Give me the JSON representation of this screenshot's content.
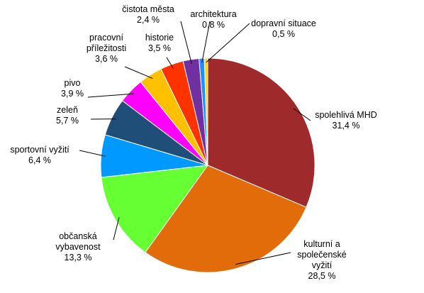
{
  "chart_data": {
    "type": "pie",
    "title": "",
    "legend": "none",
    "slices": [
      {
        "label": [
          "spolehlivá MHD"
        ],
        "value": 31.4,
        "value_text": "31,4 %",
        "color": "#9e2a2b"
      },
      {
        "label": [
          "kulturní a",
          "společenské",
          "vyžití"
        ],
        "value": 28.5,
        "value_text": "28,5 %",
        "color": "#e36c0a"
      },
      {
        "label": [
          "občanská",
          "vybavenost"
        ],
        "value": 13.3,
        "value_text": "13,3 %",
        "color": "#66ff33"
      },
      {
        "label": [
          "sportovní vyžití"
        ],
        "value": 6.4,
        "value_text": "6,4 %",
        "color": "#0099ff"
      },
      {
        "label": [
          "zeleň"
        ],
        "value": 5.7,
        "value_text": "5,7 %",
        "color": "#1f4e79"
      },
      {
        "label": [
          "pivo"
        ],
        "value": 3.9,
        "value_text": "3,9 %",
        "color": "#ff00ff"
      },
      {
        "label": [
          "pracovní",
          "příležitosti"
        ],
        "value": 3.6,
        "value_text": "3,6 %",
        "color": "#ffc000"
      },
      {
        "label": [
          "historie"
        ],
        "value": 3.5,
        "value_text": "3,5 %",
        "color": "#ff3300"
      },
      {
        "label": [
          "čistota města"
        ],
        "value": 2.4,
        "value_text": "2,4 %",
        "color": "#7030a0"
      },
      {
        "label": [
          "architektura"
        ],
        "value": 0.8,
        "value_text": "0,8 %",
        "color": "#1e90ff"
      },
      {
        "label": [
          "dopravní situace"
        ],
        "value": 0.5,
        "value_text": "0,5 %",
        "color": "#ffd700"
      }
    ]
  }
}
